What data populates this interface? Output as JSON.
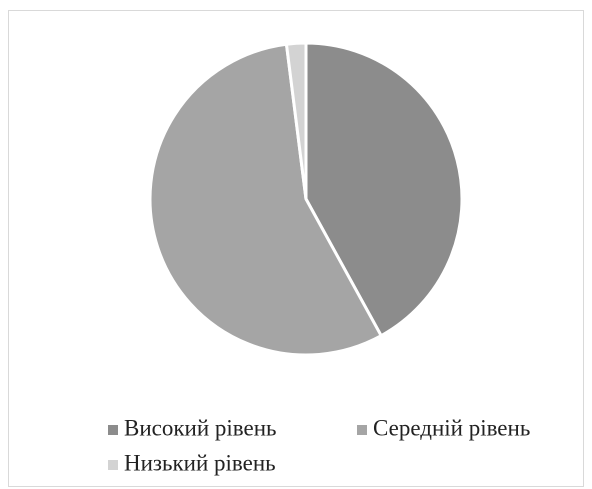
{
  "chart_data": {
    "type": "pie",
    "categories": [
      "Високий рівень",
      "Середній рівень",
      "Низький рівень"
    ],
    "values": [
      42,
      56,
      2
    ],
    "colors": [
      "#8c8c8c",
      "#a5a5a5",
      "#d3d3d3"
    ],
    "legend": "bottom"
  }
}
